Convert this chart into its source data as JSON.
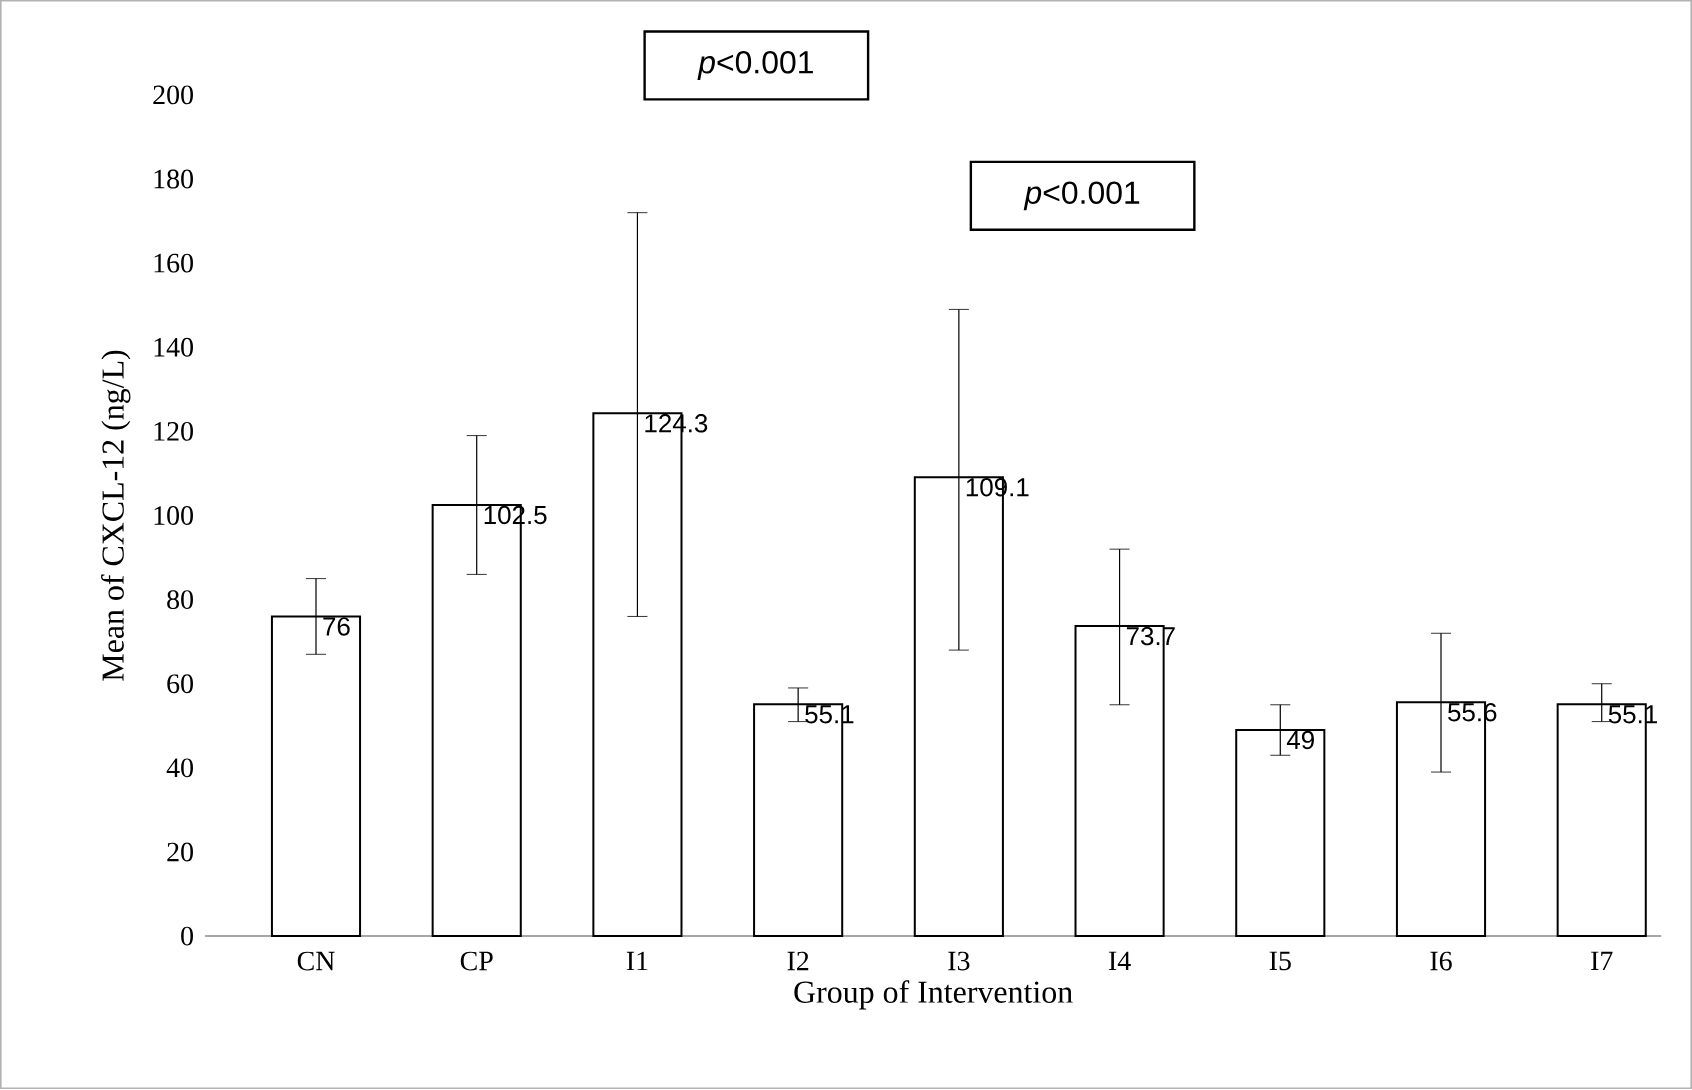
{
  "chart_data": {
    "type": "bar",
    "xlabel": "Group of Intervention",
    "ylabel": "Mean of CXCL-12  (ng/L)",
    "categories": [
      "CN",
      "CP",
      "I1",
      "I2",
      "I3",
      "I4",
      "I5",
      "I6",
      "I7"
    ],
    "values": [
      76,
      102.5,
      124.3,
      55.1,
      109.1,
      73.7,
      49,
      55.6,
      55.1
    ],
    "errors": [
      [
        67,
        85
      ],
      [
        86,
        119
      ],
      [
        76,
        172
      ],
      [
        51,
        59
      ],
      [
        68,
        149
      ],
      [
        55,
        92
      ],
      [
        43,
        55
      ],
      [
        39,
        72
      ],
      [
        51,
        60
      ]
    ],
    "color": "#ffffff",
    "data_labels": true,
    "grid": false,
    "ylim": [
      0,
      200
    ],
    "yticks": [
      0,
      20,
      40,
      60,
      80,
      100,
      120,
      140,
      160,
      180,
      200
    ],
    "annotations": [
      "*p*<0.001",
      "*p*<0.001"
    ]
  }
}
